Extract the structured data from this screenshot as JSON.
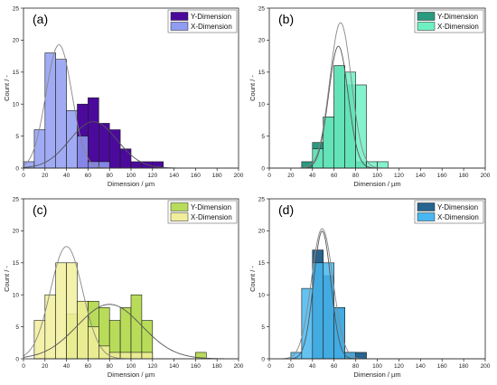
{
  "chart_data": [
    {
      "panel": "(a)",
      "type": "bar",
      "xlabel": "Dimension / µm",
      "ylabel": "Count / -",
      "xlim": [
        0,
        200
      ],
      "ylim": [
        0,
        25
      ],
      "xticks": [
        "0",
        "20",
        "40",
        "60",
        "80",
        "100",
        "120",
        "140",
        "160",
        "180",
        "200"
      ],
      "yticks": [
        "0",
        "5",
        "10",
        "15",
        "20",
        "25"
      ],
      "bin_width": 10,
      "series": [
        {
          "name": "Y-Dimension",
          "color": "#4b0a9c",
          "bins": [
            0,
            10,
            20,
            30,
            40,
            50,
            60,
            70,
            80,
            90,
            100,
            110,
            120
          ],
          "counts": [
            0,
            0,
            0,
            0,
            0,
            10,
            11,
            7,
            6,
            3,
            1,
            1,
            1
          ],
          "fit_mean": 65,
          "fit_sd": 22
        },
        {
          "name": "X-Dimension",
          "color": "#8f9cf2",
          "bins": [
            0,
            10,
            20,
            30,
            40,
            50,
            60,
            70
          ],
          "counts": [
            1,
            6,
            18,
            17,
            9,
            5,
            1,
            1
          ],
          "fit_mean": 33,
          "fit_sd": 12
        }
      ]
    },
    {
      "panel": "(b)",
      "type": "bar",
      "xlabel": "Dimension / µm",
      "ylabel": "Count / -",
      "xlim": [
        0,
        200
      ],
      "ylim": [
        0,
        25
      ],
      "xticks": [
        "0",
        "20",
        "40",
        "60",
        "80",
        "100",
        "120",
        "140",
        "160",
        "180",
        "200"
      ],
      "yticks": [
        "0",
        "5",
        "10",
        "15",
        "20",
        "25"
      ],
      "bin_width": 10,
      "series": [
        {
          "name": "Y-Dimension",
          "color": "#2a9a80",
          "bins": [
            30,
            40,
            50,
            60,
            70,
            80
          ],
          "counts": [
            1,
            4,
            8,
            16,
            13,
            1
          ],
          "fit_mean": 64,
          "fit_sd": 9
        },
        {
          "name": "X-Dimension",
          "color": "#6ff0c3",
          "bins": [
            30,
            40,
            50,
            60,
            70,
            80,
            90,
            100
          ],
          "counts": [
            0,
            3,
            8,
            16,
            15,
            13,
            1,
            1
          ],
          "fit_mean": 66,
          "fit_sd": 10
        }
      ]
    },
    {
      "panel": "(c)",
      "type": "bar",
      "xlabel": "Dimension / µm",
      "ylabel": "Count / -",
      "xlim": [
        0,
        200
      ],
      "ylim": [
        0,
        25
      ],
      "xticks": [
        "0",
        "20",
        "40",
        "60",
        "80",
        "100",
        "120",
        "140",
        "160",
        "180",
        "200"
      ],
      "yticks": [
        "0",
        "5",
        "10",
        "15",
        "20",
        "25"
      ],
      "bin_width": 10,
      "series": [
        {
          "name": "Y-Dimension",
          "color": "#b8dc5a",
          "bins": [
            40,
            50,
            60,
            70,
            80,
            90,
            100,
            110,
            160
          ],
          "counts": [
            7,
            9,
            9,
            8,
            6,
            8,
            10,
            6,
            1
          ],
          "fit_mean": 80,
          "fit_sd": 30
        },
        {
          "name": "X-Dimension",
          "color": "#f1ee9b",
          "bins": [
            10,
            20,
            30,
            40,
            50,
            60,
            70,
            80,
            90,
            100,
            110
          ],
          "counts": [
            6,
            10,
            15,
            15,
            9,
            5,
            2,
            1,
            1,
            1,
            1
          ],
          "fit_mean": 40,
          "fit_sd": 15
        }
      ]
    },
    {
      "panel": "(d)",
      "type": "bar",
      "xlabel": "Dimension / µm",
      "ylabel": "Count / -",
      "xlim": [
        0,
        200
      ],
      "ylim": [
        0,
        25
      ],
      "xticks": [
        "0",
        "20",
        "40",
        "60",
        "80",
        "100",
        "120",
        "140",
        "160",
        "180",
        "200"
      ],
      "yticks": [
        "0",
        "5",
        "10",
        "15",
        "20",
        "25"
      ],
      "bin_width": 10,
      "series": [
        {
          "name": "Y-Dimension",
          "color": "#27648f",
          "bins": [
            30,
            40,
            50,
            60,
            70,
            80
          ],
          "counts": [
            0,
            17,
            13,
            8,
            1,
            1
          ],
          "fit_mean": 49,
          "fit_sd": 8
        },
        {
          "name": "X-Dimension",
          "color": "#48b7f0",
          "bins": [
            20,
            30,
            40,
            50,
            60,
            70
          ],
          "counts": [
            1,
            11,
            15,
            15,
            8,
            1
          ],
          "fit_mean": 49,
          "fit_sd": 10
        }
      ]
    }
  ]
}
